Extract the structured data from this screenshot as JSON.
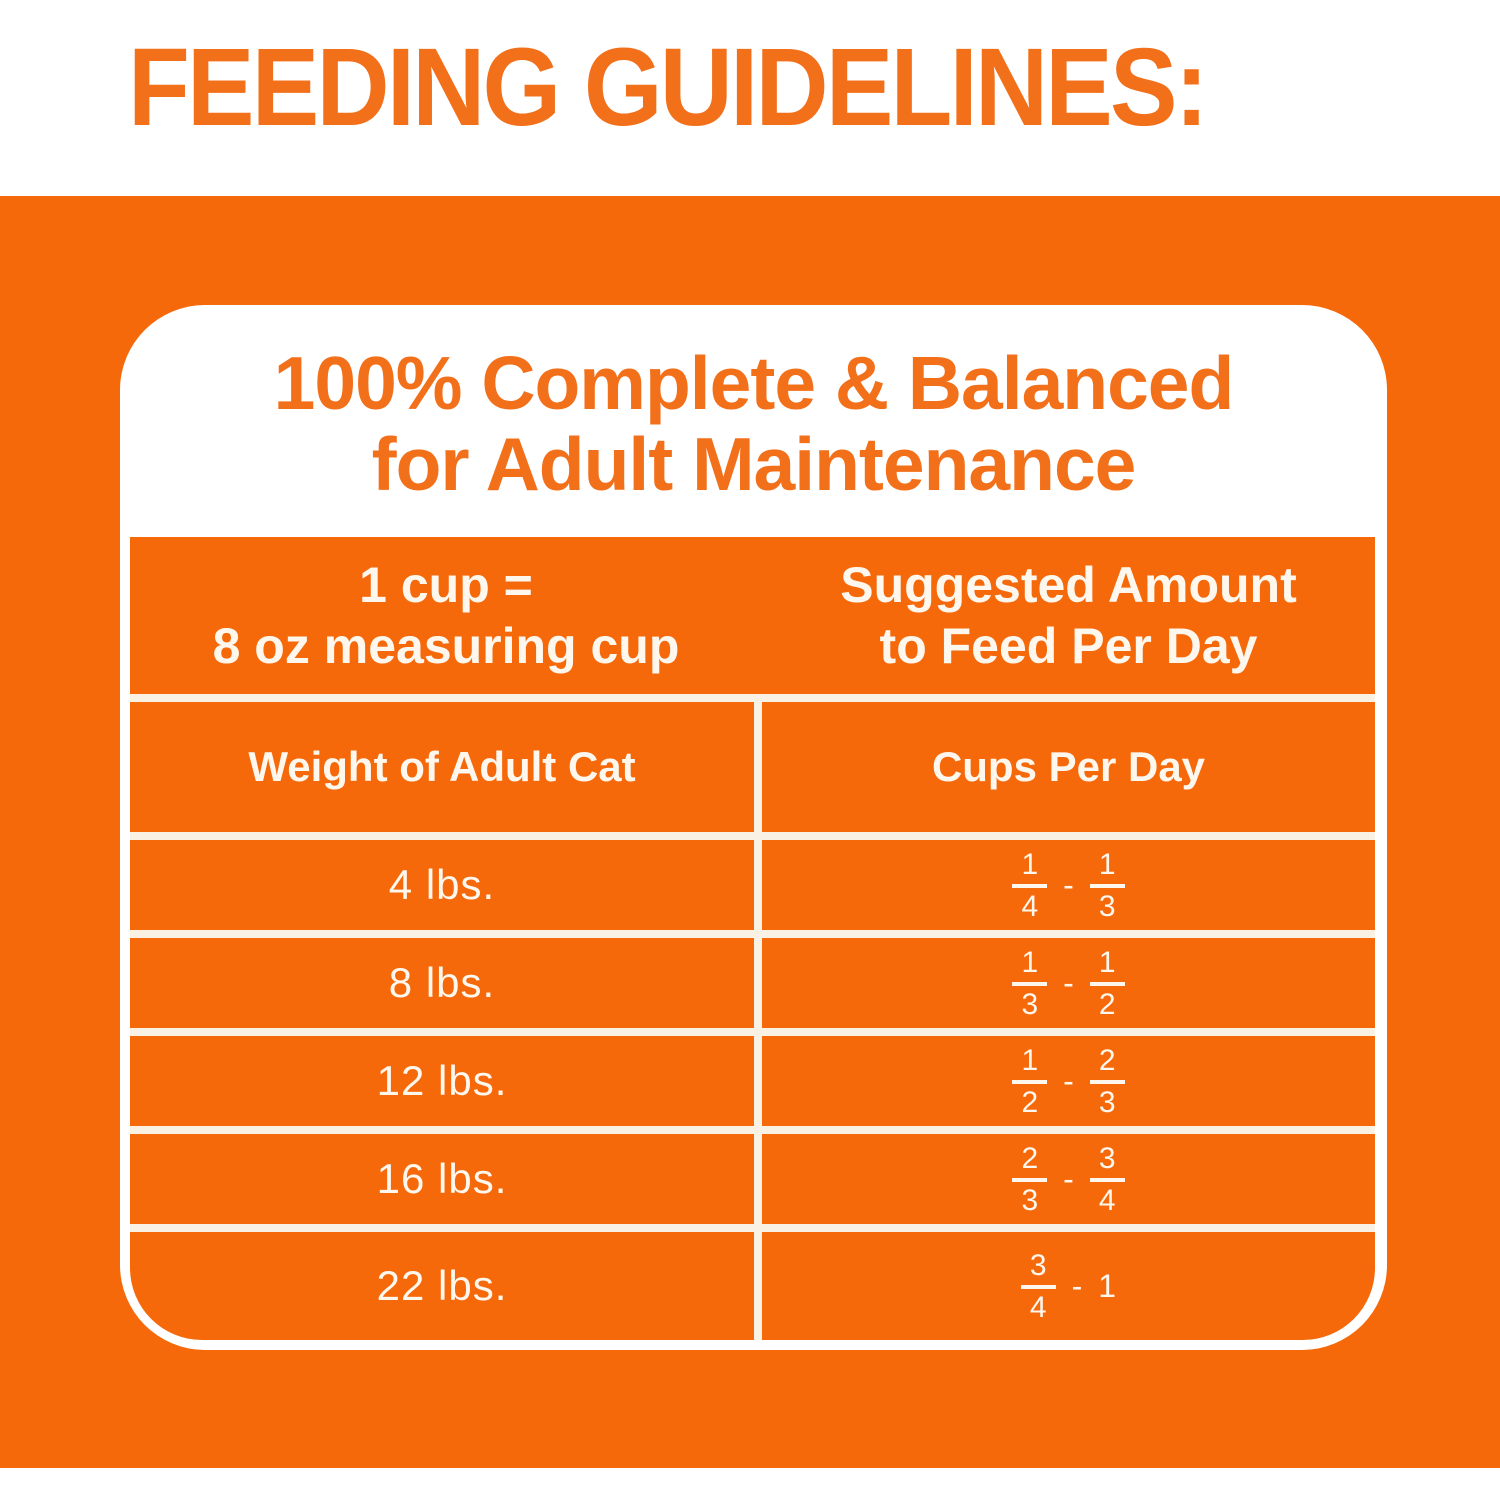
{
  "page": {
    "title": "FEEDING GUIDELINES:"
  },
  "card": {
    "title_line1": "100% Complete & Balanced",
    "title_line2": "for Adult Maintenance",
    "header": {
      "left_line1": "1 cup =",
      "left_line2": "8 oz measuring cup",
      "right_line1": "Suggested Amount",
      "right_line2": "to Feed Per Day"
    },
    "columns": {
      "weight": "Weight of Adult Cat",
      "cups": "Cups Per Day"
    },
    "range_separator": "-",
    "rows": [
      {
        "weight": "4 lbs.",
        "from": {
          "num": "1",
          "den": "4"
        },
        "to": {
          "num": "1",
          "den": "3"
        }
      },
      {
        "weight": "8 lbs.",
        "from": {
          "num": "1",
          "den": "3"
        },
        "to": {
          "num": "1",
          "den": "2"
        }
      },
      {
        "weight": "12 lbs.",
        "from": {
          "num": "1",
          "den": "2"
        },
        "to": {
          "num": "2",
          "den": "3"
        }
      },
      {
        "weight": "16 lbs.",
        "from": {
          "num": "2",
          "den": "3"
        },
        "to": {
          "num": "3",
          "den": "4"
        }
      },
      {
        "weight": "22 lbs.",
        "from": {
          "num": "3",
          "den": "4"
        },
        "to": {
          "whole": "1"
        }
      }
    ]
  },
  "colors": {
    "orange_bg": "#f6690b",
    "orange_text": "#f3701b",
    "cream_line": "#f9f1e4",
    "cream_text": "#fdf7ee"
  },
  "chart_data": {
    "type": "table",
    "title": "FEEDING GUIDELINES: 100% Complete & Balanced for Adult Maintenance",
    "note": "1 cup = 8 oz measuring cup; Suggested Amount to Feed Per Day",
    "columns": [
      "Weight of Adult Cat",
      "Cups Per Day"
    ],
    "rows": [
      [
        "4 lbs.",
        "1/4 - 1/3"
      ],
      [
        "8 lbs.",
        "1/3 - 1/2"
      ],
      [
        "12 lbs.",
        "1/2 - 2/3"
      ],
      [
        "16 lbs.",
        "2/3 - 3/4"
      ],
      [
        "22 lbs.",
        "3/4 - 1"
      ]
    ]
  }
}
